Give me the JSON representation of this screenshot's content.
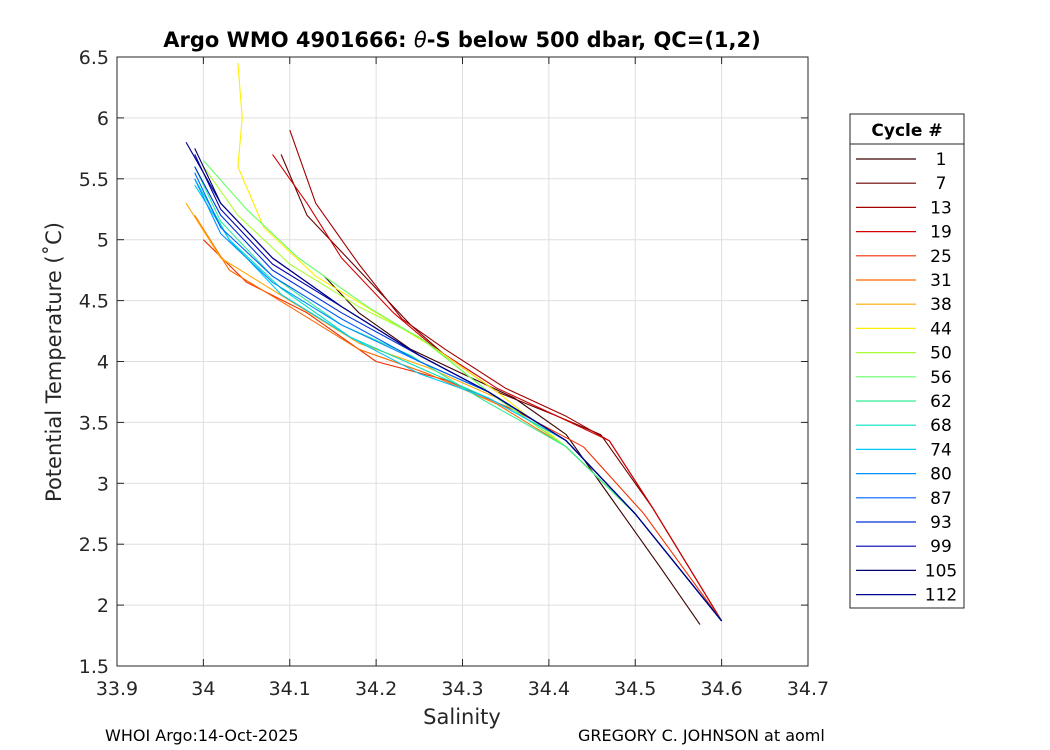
{
  "chart_data": {
    "type": "line",
    "title_prefix": "Argo WMO 4901666: ",
    "title_symbol": "θ",
    "title_suffix": "-S below 500 dbar,  QC=(1,2)",
    "xlabel": "Salinity",
    "ylabel": "Potential Temperature (˚C)",
    "xlim": [
      33.9,
      34.7
    ],
    "ylim": [
      1.5,
      6.5
    ],
    "x_ticks": [
      "33.9",
      "34",
      "34.1",
      "34.2",
      "34.3",
      "34.4",
      "34.5",
      "34.6",
      "34.7"
    ],
    "y_ticks": [
      "1.5",
      "2",
      "2.5",
      "3",
      "3.5",
      "4",
      "4.5",
      "5",
      "5.5",
      "6",
      "6.5"
    ],
    "grid": true,
    "legend_position": "right",
    "legend_title": "Cycle #",
    "legend_entries": [
      "1",
      "7",
      "13",
      "19",
      "25",
      "31",
      "38",
      "44",
      "50",
      "56",
      "62",
      "68",
      "74",
      "80",
      "87",
      "93",
      "99",
      "105",
      "112"
    ],
    "legend_colors": [
      "#3a0000",
      "#6a0000",
      "#a00000",
      "#d40000",
      "#f23000",
      "#ff6a00",
      "#ffaa00",
      "#ffee00",
      "#aaff33",
      "#66ff66",
      "#33ee99",
      "#00e0c0",
      "#00c8ff",
      "#0090ff",
      "#0060ff",
      "#0030e0",
      "#0000b0",
      "#000070",
      "#00008c"
    ],
    "series": [
      {
        "name": "1",
        "x": [
          34.575,
          34.53,
          34.47,
          34.42,
          34.36,
          34.3,
          34.24,
          34.18,
          34.14
        ],
        "y": [
          1.84,
          2.3,
          2.9,
          3.4,
          3.7,
          3.9,
          4.1,
          4.4,
          4.7
        ]
      },
      {
        "name": "7",
        "x": [
          34.6,
          34.52,
          34.46,
          34.41,
          34.34,
          34.28,
          34.24,
          34.18,
          34.12,
          34.09
        ],
        "y": [
          1.87,
          2.8,
          3.4,
          3.55,
          3.75,
          4.05,
          4.3,
          4.75,
          5.2,
          5.7
        ]
      },
      {
        "name": "13",
        "x": [
          34.6,
          34.52,
          34.47,
          34.42,
          34.35,
          34.28,
          34.23,
          34.18,
          34.13,
          34.1
        ],
        "y": [
          1.87,
          2.8,
          3.35,
          3.55,
          3.78,
          4.1,
          4.35,
          4.8,
          5.3,
          5.9
        ]
      },
      {
        "name": "19",
        "x": [
          34.6,
          34.52,
          34.47,
          34.41,
          34.34,
          34.27,
          34.22,
          34.16,
          34.12,
          34.08
        ],
        "y": [
          1.87,
          2.8,
          3.35,
          3.55,
          3.78,
          4.1,
          4.4,
          4.85,
          5.3,
          5.7
        ]
      },
      {
        "name": "25",
        "x": [
          34.6,
          34.51,
          34.44,
          34.36,
          34.28,
          34.2,
          34.12,
          34.05,
          34.0
        ],
        "y": [
          1.87,
          2.75,
          3.3,
          3.6,
          3.85,
          4.0,
          4.4,
          4.65,
          5.0
        ]
      },
      {
        "name": "31",
        "x": [
          34.6,
          34.5,
          34.42,
          34.34,
          34.26,
          34.18,
          34.1,
          34.03,
          33.99
        ],
        "y": [
          1.87,
          2.75,
          3.3,
          3.65,
          3.9,
          4.1,
          4.45,
          4.75,
          5.2
        ]
      },
      {
        "name": "38",
        "x": [
          34.6,
          34.5,
          34.42,
          34.34,
          34.26,
          34.18,
          34.1,
          34.02,
          33.98
        ],
        "y": [
          1.87,
          2.75,
          3.3,
          3.7,
          3.95,
          4.15,
          4.5,
          4.85,
          5.3
        ]
      },
      {
        "name": "44",
        "x": [
          34.6,
          34.5,
          34.42,
          34.34,
          34.27,
          34.2,
          34.13,
          34.07,
          34.04,
          34.045,
          34.04
        ],
        "y": [
          1.87,
          2.75,
          3.3,
          3.75,
          4.1,
          4.4,
          4.7,
          5.1,
          5.6,
          6.0,
          6.45
        ]
      },
      {
        "name": "50",
        "x": [
          34.6,
          34.5,
          34.42,
          34.33,
          34.25,
          34.18,
          34.1,
          34.04,
          34.0
        ],
        "y": [
          1.87,
          2.75,
          3.3,
          3.75,
          4.2,
          4.45,
          4.8,
          5.2,
          5.6
        ]
      },
      {
        "name": "56",
        "x": [
          34.6,
          34.5,
          34.42,
          34.33,
          34.26,
          34.19,
          34.11,
          34.05,
          34.0
        ],
        "y": [
          1.87,
          2.75,
          3.3,
          3.75,
          4.15,
          4.45,
          4.85,
          5.25,
          5.65
        ]
      },
      {
        "name": "62",
        "x": [
          34.6,
          34.5,
          34.42,
          34.32,
          34.24,
          34.16,
          34.08,
          34.02,
          33.99
        ],
        "y": [
          1.87,
          2.75,
          3.3,
          3.7,
          4.05,
          4.3,
          4.7,
          5.15,
          5.6
        ]
      },
      {
        "name": "68",
        "x": [
          34.6,
          34.5,
          34.42,
          34.33,
          34.25,
          34.17,
          34.09,
          34.03,
          33.99
        ],
        "y": [
          1.87,
          2.75,
          3.35,
          3.7,
          3.95,
          4.2,
          4.6,
          5.0,
          5.5
        ]
      },
      {
        "name": "74",
        "x": [
          34.6,
          34.5,
          34.42,
          34.33,
          34.25,
          34.17,
          34.09,
          34.03,
          33.99
        ],
        "y": [
          1.87,
          2.75,
          3.35,
          3.7,
          3.9,
          4.2,
          4.55,
          5.0,
          5.45
        ]
      },
      {
        "name": "80",
        "x": [
          34.6,
          34.5,
          34.42,
          34.33,
          34.25,
          34.16,
          34.08,
          34.02,
          33.99
        ],
        "y": [
          1.87,
          2.75,
          3.35,
          3.75,
          4.0,
          4.3,
          4.65,
          5.05,
          5.5
        ]
      },
      {
        "name": "87",
        "x": [
          34.6,
          34.5,
          34.42,
          34.33,
          34.25,
          34.16,
          34.08,
          34.02,
          33.99
        ],
        "y": [
          1.87,
          2.75,
          3.35,
          3.75,
          4.0,
          4.35,
          4.7,
          5.1,
          5.55
        ]
      },
      {
        "name": "93",
        "x": [
          34.6,
          34.5,
          34.42,
          34.33,
          34.25,
          34.16,
          34.08,
          34.02,
          33.99
        ],
        "y": [
          1.87,
          2.75,
          3.35,
          3.75,
          4.05,
          4.4,
          4.75,
          5.2,
          5.6
        ]
      },
      {
        "name": "99",
        "x": [
          34.6,
          34.5,
          34.42,
          34.33,
          34.25,
          34.16,
          34.08,
          34.02,
          33.99
        ],
        "y": [
          1.87,
          2.75,
          3.35,
          3.75,
          4.05,
          4.45,
          4.8,
          5.25,
          5.7
        ]
      },
      {
        "name": "105",
        "x": [
          34.6,
          34.5,
          34.42,
          34.33,
          34.25,
          34.16,
          34.08,
          34.02,
          33.99
        ],
        "y": [
          1.87,
          2.75,
          3.35,
          3.75,
          4.05,
          4.45,
          4.85,
          5.3,
          5.75
        ]
      },
      {
        "name": "112",
        "x": [
          34.6,
          34.5,
          34.42,
          34.33,
          34.25,
          34.16,
          34.08,
          34.02,
          33.98
        ],
        "y": [
          1.87,
          2.75,
          3.35,
          3.75,
          4.05,
          4.45,
          4.85,
          5.3,
          5.8
        ]
      }
    ]
  },
  "footer": {
    "left": "WHOI Argo:14-Oct-2025",
    "right": "GREGORY C. JOHNSON at aoml"
  }
}
